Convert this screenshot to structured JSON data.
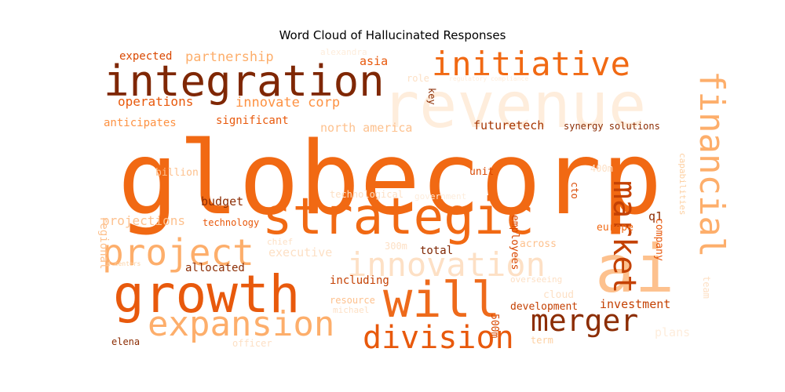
{
  "chart_data": {
    "type": "wordcloud",
    "title": "Word Cloud of Hallucinated Responses",
    "colormap": "Oranges",
    "words": [
      {
        "text": "globecorp",
        "weight": 1.0
      },
      {
        "text": "revenue",
        "weight": 0.86
      },
      {
        "text": "ai",
        "weight": 0.82
      },
      {
        "text": "strategic",
        "weight": 0.71
      },
      {
        "text": "growth",
        "weight": 0.7
      },
      {
        "text": "integration",
        "weight": 0.62
      },
      {
        "text": "will",
        "weight": 0.61
      },
      {
        "text": "financial",
        "weight": 0.57
      },
      {
        "text": "initiative",
        "weight": 0.53
      },
      {
        "text": "project",
        "weight": 0.53
      },
      {
        "text": "expansion",
        "weight": 0.53
      },
      {
        "text": "market",
        "weight": 0.49
      },
      {
        "text": "innovation",
        "weight": 0.47
      },
      {
        "text": "division",
        "weight": 0.46
      },
      {
        "text": "merger",
        "weight": 0.44
      },
      {
        "text": "innovate corp",
        "weight": 0.24
      },
      {
        "text": "partnership",
        "weight": 0.22
      },
      {
        "text": "operations",
        "weight": 0.21
      },
      {
        "text": "north america",
        "weight": 0.21
      },
      {
        "text": "projections",
        "weight": 0.21
      },
      {
        "text": "executive",
        "weight": 0.21
      },
      {
        "text": "asia",
        "weight": 0.21
      },
      {
        "text": "total",
        "weight": 0.2
      },
      {
        "text": "investment",
        "weight": 0.2
      },
      {
        "text": "futuretech",
        "weight": 0.2
      },
      {
        "text": "budget",
        "weight": 0.2
      },
      {
        "text": "expected",
        "weight": 0.19
      },
      {
        "text": "significant",
        "weight": 0.19
      },
      {
        "text": "anticipates",
        "weight": 0.19
      },
      {
        "text": "allocated",
        "weight": 0.19
      },
      {
        "text": "including",
        "weight": 0.19
      },
      {
        "text": "regional",
        "weight": 0.19
      },
      {
        "text": "plans",
        "weight": 0.19
      },
      {
        "text": "across",
        "weight": 0.18
      },
      {
        "text": "employees",
        "weight": 0.18
      },
      {
        "text": "billion",
        "weight": 0.18
      },
      {
        "text": "cloud",
        "weight": 0.18
      },
      {
        "text": "development",
        "weight": 0.18
      },
      {
        "text": "q1",
        "weight": 0.18
      },
      {
        "text": "unit",
        "weight": 0.18
      },
      {
        "text": "europe",
        "weight": 0.18
      },
      {
        "text": "500m",
        "weight": 0.17
      },
      {
        "text": "300m",
        "weight": 0.17
      },
      {
        "text": "400m",
        "weight": 0.17
      },
      {
        "text": "company",
        "weight": 0.17
      },
      {
        "text": "synergy solutions",
        "weight": 0.16
      },
      {
        "text": "technology",
        "weight": 0.16
      },
      {
        "text": "technological",
        "weight": 0.15
      },
      {
        "text": "key",
        "weight": 0.15
      },
      {
        "text": "role",
        "weight": 0.15
      },
      {
        "text": "elena",
        "weight": 0.15
      },
      {
        "text": "officer",
        "weight": 0.15
      },
      {
        "text": "term",
        "weight": 0.15
      },
      {
        "text": "overseeing",
        "weight": 0.15
      },
      {
        "text": "resource",
        "weight": 0.15
      },
      {
        "text": "michael",
        "weight": 0.15
      },
      {
        "text": "chief",
        "weight": 0.15
      },
      {
        "text": "capabilities",
        "weight": 0.14
      },
      {
        "text": "team",
        "weight": 0.14
      },
      {
        "text": "cto",
        "weight": 0.14
      },
      {
        "text": "alexandra",
        "weight": 0.14
      },
      {
        "text": "government",
        "weight": 0.14
      },
      {
        "text": "regulatory compliance",
        "weight": 0.1
      },
      {
        "text": "d centers",
        "weight": 0.1
      }
    ]
  }
}
